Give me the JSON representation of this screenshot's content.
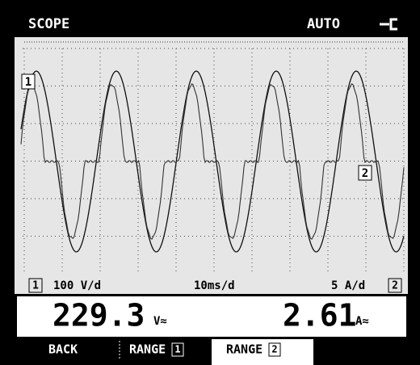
{
  "header": {
    "mode": "SCOPE",
    "trigger": "AUTO"
  },
  "plot": {
    "markers": [
      "1",
      "2"
    ]
  },
  "scale": {
    "ch1_label": "1",
    "ch1": "100 V/d",
    "time": "10ms/d",
    "ch2": "5 A/d",
    "ch2_label": "2"
  },
  "readings": [
    {
      "value": "229.3",
      "unit": "V≈"
    },
    {
      "value": "2.61",
      "unit": "A≈"
    }
  ],
  "softkeys": [
    {
      "label": "BACK"
    },
    {
      "label": "RANGE",
      "badge": "1"
    },
    {
      "label": "RANGE",
      "badge": "2"
    }
  ]
}
